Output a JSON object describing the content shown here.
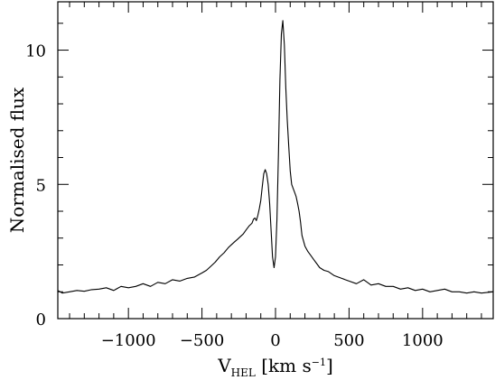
{
  "chart_data": {
    "type": "line",
    "title": "",
    "xlabel": {
      "main": "V",
      "sub": "HEL",
      "units_pre": " [km s",
      "sup": "−1",
      "units_post": "]"
    },
    "ylabel": "Normalised flux",
    "xlim": [
      -1480,
      1480
    ],
    "ylim": [
      0,
      11.8
    ],
    "xticks_major": [
      -1000,
      -500,
      0,
      500,
      1000
    ],
    "xtick_labels": [
      "−1000",
      "−500",
      "0",
      "500",
      "1000"
    ],
    "yticks_major": [
      0,
      5,
      10
    ],
    "ytick_labels": [
      "0",
      "5",
      "10"
    ],
    "xticks_minor_step": 100,
    "yticks_minor_step": 1,
    "grid": false,
    "series": [
      {
        "values_x": [
          -1480,
          -1450,
          -1400,
          -1350,
          -1300,
          -1250,
          -1200,
          -1150,
          -1100,
          -1050,
          -1000,
          -950,
          -900,
          -850,
          -800,
          -750,
          -700,
          -650,
          -600,
          -550,
          -500,
          -470,
          -440,
          -410,
          -380,
          -350,
          -320,
          -300,
          -280,
          -260,
          -240,
          -220,
          -200,
          -180,
          -160,
          -150,
          -140,
          -130,
          -120,
          -110,
          -100,
          -90,
          -80,
          -70,
          -60,
          -50,
          -40,
          -30,
          -20,
          -10,
          0,
          10,
          20,
          30,
          40,
          50,
          60,
          70,
          80,
          90,
          100,
          110,
          120,
          130,
          140,
          150,
          160,
          170,
          180,
          200,
          220,
          240,
          260,
          280,
          300,
          330,
          360,
          400,
          450,
          500,
          550,
          600,
          650,
          700,
          750,
          800,
          850,
          900,
          950,
          1000,
          1050,
          1100,
          1150,
          1200,
          1250,
          1300,
          1350,
          1400,
          1450,
          1480
        ],
        "values_y": [
          1.05,
          0.95,
          1.0,
          1.05,
          1.02,
          1.08,
          1.1,
          1.15,
          1.05,
          1.2,
          1.15,
          1.2,
          1.3,
          1.2,
          1.35,
          1.3,
          1.45,
          1.4,
          1.5,
          1.55,
          1.7,
          1.8,
          1.95,
          2.1,
          2.3,
          2.45,
          2.65,
          2.75,
          2.85,
          2.95,
          3.05,
          3.15,
          3.3,
          3.45,
          3.55,
          3.7,
          3.75,
          3.65,
          3.85,
          4.1,
          4.4,
          4.9,
          5.4,
          5.55,
          5.4,
          5.0,
          4.3,
          3.3,
          2.3,
          1.9,
          2.3,
          3.7,
          6.2,
          8.9,
          10.6,
          11.1,
          10.2,
          8.6,
          7.4,
          6.4,
          5.5,
          5.0,
          4.85,
          4.7,
          4.55,
          4.3,
          4.0,
          3.6,
          3.1,
          2.7,
          2.5,
          2.35,
          2.2,
          2.05,
          1.9,
          1.8,
          1.75,
          1.6,
          1.5,
          1.4,
          1.3,
          1.45,
          1.25,
          1.3,
          1.2,
          1.2,
          1.1,
          1.15,
          1.05,
          1.1,
          1.0,
          1.05,
          1.1,
          1.0,
          1.0,
          0.95,
          1.0,
          0.95,
          0.98,
          1.0
        ]
      }
    ]
  }
}
